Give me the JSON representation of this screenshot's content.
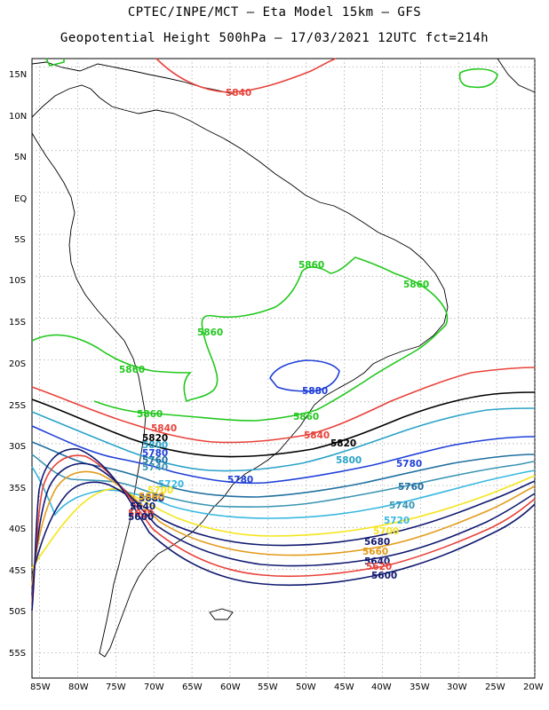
{
  "header": {
    "line1": "CPTEC/INPE/MCT –  Eta Model 15km – GFS",
    "line2": "Geopotential Height 500hPa – 17/03/2021 12UTC fct=214h"
  },
  "axes": {
    "lat_labels": [
      "15N",
      "10N",
      "5N",
      "EQ",
      "5S",
      "10S",
      "15S",
      "20S",
      "25S",
      "30S",
      "35S",
      "40S",
      "45S",
      "50S",
      "55S"
    ],
    "lon_labels": [
      "85W",
      "80W",
      "75W",
      "70W",
      "65W",
      "60W",
      "55W",
      "50W",
      "45W",
      "40W",
      "35W",
      "30W",
      "25W",
      "20W"
    ],
    "lat_range_deg": [
      -58,
      16
    ],
    "lon_range_deg": [
      -86,
      -20
    ],
    "grid": true
  },
  "contours": [
    {
      "value": "5880",
      "color": "#1e3fd8"
    },
    {
      "value": "5860",
      "color": "#22c81e"
    },
    {
      "value": "5840",
      "color": "#e8423a"
    },
    {
      "value": "5820",
      "color": "#000000"
    },
    {
      "value": "5800",
      "color": "#2aa3c8"
    },
    {
      "value": "5780",
      "color": "#1e3fd8"
    },
    {
      "value": "5760",
      "color": "#1f6fa0"
    },
    {
      "value": "5740",
      "color": "#3a95b4"
    },
    {
      "value": "5720",
      "color": "#38b8e0"
    },
    {
      "value": "5700",
      "color": "#f5e51c"
    },
    {
      "value": "5680",
      "color": "#111a70"
    },
    {
      "value": "5660",
      "color": "#e39b1a"
    },
    {
      "value": "5640",
      "color": "#111a70"
    },
    {
      "value": "5620",
      "color": "#e8423a"
    },
    {
      "value": "5600",
      "color": "#111a70"
    }
  ],
  "contour_labels": [
    {
      "text": "5840",
      "color": "#e8423a"
    },
    {
      "text": "5860",
      "color": "#22c81e"
    },
    {
      "text": "5860",
      "color": "#22c81e"
    },
    {
      "text": "5860",
      "color": "#22c81e"
    },
    {
      "text": "5860",
      "color": "#22c81e"
    },
    {
      "text": "5880",
      "color": "#1e3fd8"
    },
    {
      "text": "5860",
      "color": "#22c81e"
    },
    {
      "text": "5860",
      "color": "#22c81e"
    },
    {
      "text": "5840",
      "color": "#e8423a"
    },
    {
      "text": "5840",
      "color": "#e8423a"
    },
    {
      "text": "5820",
      "color": "#000000"
    },
    {
      "text": "5820",
      "color": "#000000"
    },
    {
      "text": "5800",
      "color": "#2aa3c8"
    },
    {
      "text": "5800",
      "color": "#2aa3c8"
    },
    {
      "text": "5780",
      "color": "#1e3fd8"
    },
    {
      "text": "5780",
      "color": "#1e3fd8"
    },
    {
      "text": "5780",
      "color": "#1e3fd8"
    },
    {
      "text": "5760",
      "color": "#1f6fa0"
    },
    {
      "text": "5760",
      "color": "#1f6fa0"
    },
    {
      "text": "5740",
      "color": "#3a95b4"
    },
    {
      "text": "5740",
      "color": "#3a95b4"
    },
    {
      "text": "5720",
      "color": "#38b8e0"
    },
    {
      "text": "5720",
      "color": "#38b8e0"
    },
    {
      "text": "5700",
      "color": "#f5e51c"
    },
    {
      "text": "5700",
      "color": "#f5e51c"
    },
    {
      "text": "5680",
      "color": "#111a70"
    },
    {
      "text": "5680",
      "color": "#111a70"
    },
    {
      "text": "5660",
      "color": "#e39b1a"
    },
    {
      "text": "5660",
      "color": "#e39b1a"
    },
    {
      "text": "5640",
      "color": "#111a70"
    },
    {
      "text": "5640",
      "color": "#111a70"
    },
    {
      "text": "5620",
      "color": "#e8423a"
    },
    {
      "text": "5620",
      "color": "#e8423a"
    },
    {
      "text": "5600",
      "color": "#111a70"
    },
    {
      "text": "5600",
      "color": "#111a70"
    }
  ]
}
